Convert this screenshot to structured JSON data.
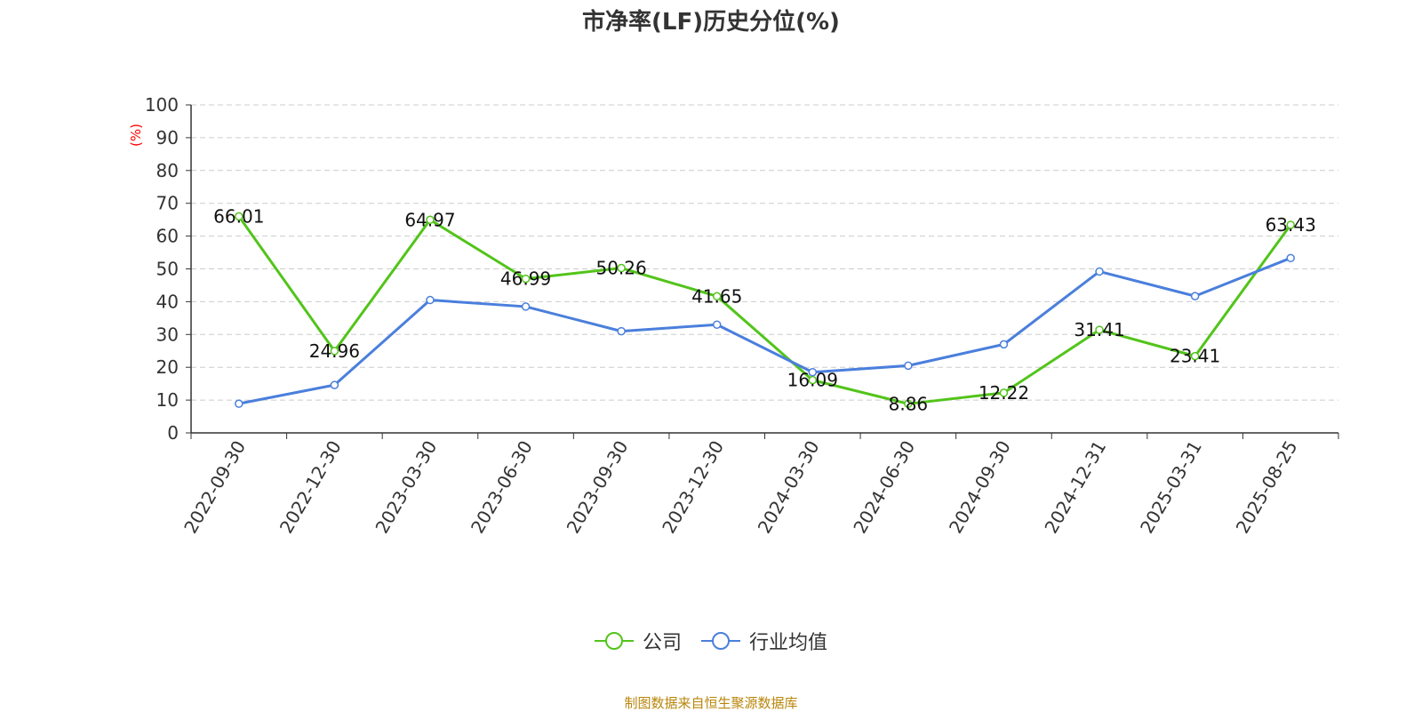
{
  "chart_data": {
    "type": "line",
    "title": "市净率(LF)历史分位(%)",
    "ylabel": "(%)",
    "xlabel": "",
    "categories": [
      "2022-09-30",
      "2022-12-30",
      "2023-03-30",
      "2023-06-30",
      "2023-09-30",
      "2023-12-30",
      "2024-03-30",
      "2024-06-30",
      "2024-09-30",
      "2024-12-31",
      "2025-03-31",
      "2025-08-25"
    ],
    "ylim": [
      0,
      100
    ],
    "yticks": [
      0,
      10,
      20,
      30,
      40,
      50,
      60,
      70,
      80,
      90,
      100
    ],
    "grid": true,
    "legend_position": "bottom",
    "series": [
      {
        "name": "公司",
        "color": "#52c41a",
        "show_labels": true,
        "values": [
          66.01,
          24.96,
          64.97,
          46.99,
          50.26,
          41.65,
          16.09,
          8.86,
          12.22,
          31.41,
          23.41,
          63.43
        ]
      },
      {
        "name": "行业均值",
        "color": "#4a7fdc",
        "show_labels": false,
        "values": [
          8.9,
          14.6,
          40.5,
          38.5,
          31.0,
          33.0,
          18.5,
          20.5,
          27.0,
          49.2,
          41.7,
          53.3
        ]
      }
    ]
  },
  "footer": "制图数据来自恒生聚源数据库",
  "colors": {
    "axis": "#333333",
    "grid": "#cccccc",
    "ylabel": "#ff0000",
    "footer": "#b8860b"
  }
}
